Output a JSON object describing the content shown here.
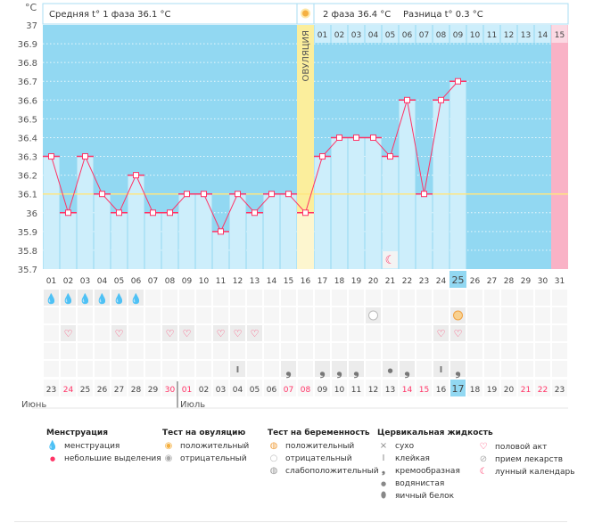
{
  "header": {
    "unit": "°C",
    "phase1": "Средняя t° 1 фаза 36.1 °C",
    "phase2": "2 фаза 36.4 °C",
    "diff": "Разница t° 0.3 °C",
    "ovulation_label": "ОВУЛЯЦИЯ"
  },
  "chart_data": {
    "type": "bar",
    "ylim": [
      35.7,
      37
    ],
    "yticks": [
      "37",
      "36.9",
      "36.8",
      "36.7",
      "36.6",
      "36.5",
      "36.4",
      "36.3",
      "36.2",
      "36.1",
      "36",
      "35.9",
      "35.8",
      "35.7"
    ],
    "cycle_days": [
      "01",
      "02",
      "03",
      "04",
      "05",
      "06",
      "07",
      "08",
      "09",
      "10",
      "11",
      "12",
      "13",
      "14",
      "15",
      "16",
      "17",
      "18",
      "19",
      "20",
      "21",
      "22",
      "23",
      "24",
      "25",
      "26",
      "27",
      "28",
      "29",
      "30",
      "31"
    ],
    "temperatures": [
      36.3,
      36.0,
      36.3,
      36.1,
      36.0,
      36.2,
      36.0,
      36.0,
      36.1,
      36.1,
      35.9,
      36.1,
      36.0,
      36.1,
      36.1,
      36.0,
      36.3,
      36.4,
      36.4,
      36.4,
      36.3,
      36.6,
      36.1,
      36.6,
      36.7,
      null,
      null,
      null,
      null,
      null,
      null
    ],
    "average_line": 36.1,
    "ovulation_day": 16,
    "post_ovulation_days": [
      "01",
      "02",
      "03",
      "04",
      "05",
      "06",
      "07",
      "08",
      "09",
      "10",
      "11",
      "12",
      "13",
      "14",
      "15"
    ],
    "current_day": 25,
    "expected_period_day": 31,
    "moon_day": 21,
    "calendar_dates": [
      "23",
      "24",
      "25",
      "26",
      "27",
      "28",
      "29",
      "30",
      "01",
      "02",
      "03",
      "04",
      "05",
      "06",
      "07",
      "08",
      "09",
      "10",
      "11",
      "12",
      "13",
      "14",
      "15",
      "16",
      "17",
      "18",
      "19",
      "20",
      "21",
      "22",
      "23"
    ],
    "weekend_dates_idx": [
      1,
      7,
      8,
      14,
      15,
      21,
      22,
      28,
      29
    ],
    "months": [
      "Июнь",
      "Июль"
    ],
    "menstruation_days": [
      1,
      2,
      3,
      4,
      5,
      6
    ],
    "pregnancy_test": {
      "20": "negative",
      "25": "positive"
    },
    "intercourse_days": [
      2,
      5,
      8,
      9,
      11,
      12,
      13,
      24,
      25
    ],
    "cervical_fluid": {
      "12": "sticky",
      "15": "creamy",
      "17": "creamy",
      "18": "creamy",
      "19": "creamy",
      "21": "watery",
      "22": "creamy",
      "24": "sticky",
      "25": "creamy"
    }
  },
  "colors": {
    "bg_dark": "#92d8f2",
    "bar": "#cdeefb",
    "line": "#ff3366",
    "ovulation": "#fbee9c",
    "period": "#f9b2c6",
    "avg": "#ffe680",
    "weekend": "#ff3366"
  },
  "legend": {
    "menstruation": {
      "title": "Менструация",
      "items": [
        "менструация",
        "небольшие выделения"
      ]
    },
    "ovulation_test": {
      "title": "Тест на овуляцию",
      "items": [
        "положительный",
        "отрицательный"
      ]
    },
    "pregnancy_test": {
      "title": "Тест на беременность",
      "items": [
        "положительный",
        "отрицательный",
        "слабоположительный"
      ]
    },
    "cervical": {
      "title": "Цервикальная жидкость",
      "items": [
        "сухо",
        "клейкая",
        "кремообразная",
        "водянистая",
        "яичный белок"
      ]
    },
    "other": {
      "items": [
        "половой акт",
        "прием лекарств",
        "лунный календарь"
      ]
    }
  }
}
